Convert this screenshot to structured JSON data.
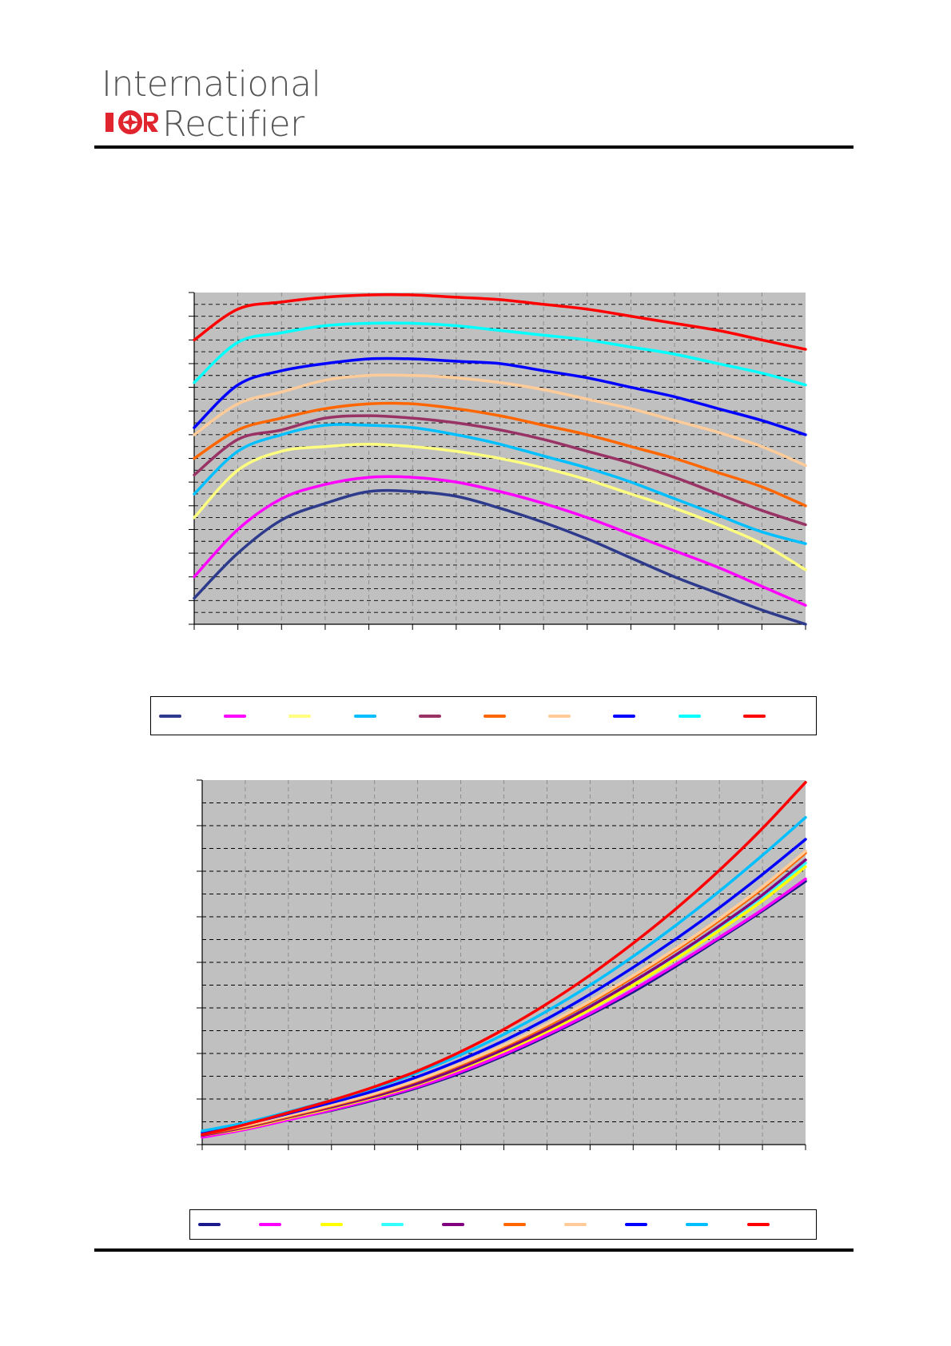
{
  "header": {
    "logo_line1": "International",
    "logo_mark": "IOR",
    "logo_line2": "Rectifier"
  },
  "chart_data": [
    {
      "type": "line",
      "x": [
        0,
        1,
        2,
        3,
        4,
        5,
        6,
        7,
        8,
        9,
        10,
        11,
        12,
        13,
        14
      ],
      "xlim": [
        0,
        14
      ],
      "ylim": [
        0,
        14
      ],
      "grid": true,
      "legend_position": "bottom",
      "series": [
        {
          "color": "#2E3A8C",
          "values": [
            1.1,
            3.0,
            4.4,
            5.1,
            5.6,
            5.6,
            5.4,
            4.9,
            4.3,
            3.6,
            2.8,
            2.0,
            1.3,
            0.6,
            0.0
          ]
        },
        {
          "color": "#FF00FF",
          "values": [
            2.0,
            4.0,
            5.3,
            5.9,
            6.2,
            6.2,
            6.0,
            5.6,
            5.1,
            4.5,
            3.8,
            3.1,
            2.4,
            1.6,
            0.8
          ]
        },
        {
          "color": "#FFFF80",
          "values": [
            4.5,
            6.5,
            7.3,
            7.5,
            7.6,
            7.5,
            7.3,
            7.0,
            6.6,
            6.1,
            5.5,
            4.9,
            4.2,
            3.4,
            2.3
          ]
        },
        {
          "color": "#00BFFF",
          "values": [
            5.5,
            7.3,
            8.0,
            8.4,
            8.4,
            8.3,
            8.0,
            7.6,
            7.1,
            6.6,
            6.0,
            5.3,
            4.6,
            3.9,
            3.4
          ]
        },
        {
          "color": "#993366",
          "values": [
            6.3,
            7.8,
            8.2,
            8.7,
            8.8,
            8.7,
            8.5,
            8.2,
            7.8,
            7.3,
            6.8,
            6.2,
            5.5,
            4.8,
            4.2
          ]
        },
        {
          "color": "#FF6600",
          "values": [
            7.0,
            8.2,
            8.7,
            9.1,
            9.3,
            9.3,
            9.1,
            8.8,
            8.4,
            8.0,
            7.5,
            7.0,
            6.4,
            5.8,
            5.0
          ]
        },
        {
          "color": "#FFCC99",
          "values": [
            8.0,
            9.3,
            9.8,
            10.3,
            10.5,
            10.5,
            10.4,
            10.2,
            9.9,
            9.5,
            9.1,
            8.6,
            8.1,
            7.5,
            6.7
          ]
        },
        {
          "color": "#0000FF",
          "values": [
            8.3,
            10.1,
            10.7,
            11.0,
            11.2,
            11.2,
            11.1,
            11.0,
            10.7,
            10.4,
            10.0,
            9.6,
            9.1,
            8.6,
            8.0
          ]
        },
        {
          "color": "#00FFFF",
          "values": [
            10.2,
            11.9,
            12.3,
            12.6,
            12.7,
            12.7,
            12.6,
            12.4,
            12.2,
            12.0,
            11.7,
            11.4,
            11.0,
            10.6,
            10.1
          ]
        },
        {
          "color": "#FF0000",
          "values": [
            12.0,
            13.3,
            13.6,
            13.8,
            13.9,
            13.9,
            13.8,
            13.7,
            13.5,
            13.3,
            13.0,
            12.7,
            12.4,
            12.0,
            11.6
          ]
        }
      ]
    },
    {
      "type": "line",
      "x": [
        0,
        1,
        2,
        3,
        4,
        5,
        6,
        7,
        8,
        9,
        10,
        11,
        12,
        13,
        14
      ],
      "xlim": [
        0,
        14
      ],
      "ylim": [
        0,
        8
      ],
      "grid": true,
      "legend_position": "bottom",
      "series": [
        {
          "color": "#1A1A8C",
          "values": [
            0.18,
            0.35,
            0.55,
            0.75,
            0.98,
            1.25,
            1.57,
            1.95,
            2.38,
            2.85,
            3.35,
            3.92,
            4.52,
            5.13,
            5.78
          ]
        },
        {
          "color": "#FF00FF",
          "values": [
            0.16,
            0.33,
            0.54,
            0.76,
            1.0,
            1.27,
            1.6,
            1.98,
            2.41,
            2.88,
            3.4,
            3.96,
            4.55,
            5.16,
            5.83
          ]
        },
        {
          "color": "#FFFF00",
          "values": [
            0.2,
            0.36,
            0.58,
            0.8,
            1.04,
            1.32,
            1.66,
            2.05,
            2.48,
            2.97,
            3.5,
            4.08,
            4.7,
            5.35,
            6.1
          ]
        },
        {
          "color": "#33FFFF",
          "values": [
            0.28,
            0.42,
            0.62,
            0.84,
            1.08,
            1.36,
            1.7,
            2.1,
            2.54,
            3.04,
            3.58,
            4.16,
            4.78,
            5.44,
            6.18
          ]
        },
        {
          "color": "#800080",
          "values": [
            0.2,
            0.38,
            0.6,
            0.82,
            1.06,
            1.34,
            1.69,
            2.09,
            2.53,
            3.03,
            3.58,
            4.17,
            4.8,
            5.48,
            6.25
          ]
        },
        {
          "color": "#FF6600",
          "values": [
            0.22,
            0.4,
            0.62,
            0.85,
            1.1,
            1.4,
            1.75,
            2.15,
            2.6,
            3.11,
            3.67,
            4.27,
            4.92,
            5.62,
            6.4
          ]
        },
        {
          "color": "#FFCC99",
          "values": [
            0.24,
            0.42,
            0.64,
            0.87,
            1.12,
            1.42,
            1.78,
            2.18,
            2.64,
            3.15,
            3.71,
            4.31,
            4.96,
            5.66,
            6.44
          ]
        },
        {
          "color": "#0000FF",
          "values": [
            0.26,
            0.45,
            0.68,
            0.92,
            1.18,
            1.49,
            1.86,
            2.28,
            2.76,
            3.3,
            3.89,
            4.52,
            5.2,
            5.93,
            6.7
          ]
        },
        {
          "color": "#00BFFF",
          "values": [
            0.3,
            0.48,
            0.72,
            0.97,
            1.25,
            1.58,
            1.97,
            2.42,
            2.93,
            3.5,
            4.13,
            4.82,
            5.56,
            6.35,
            7.18
          ]
        },
        {
          "color": "#FF0000",
          "values": [
            0.22,
            0.44,
            0.7,
            0.97,
            1.27,
            1.62,
            2.04,
            2.53,
            3.09,
            3.72,
            4.42,
            5.18,
            6.02,
            6.94,
            7.95
          ]
        }
      ]
    }
  ]
}
